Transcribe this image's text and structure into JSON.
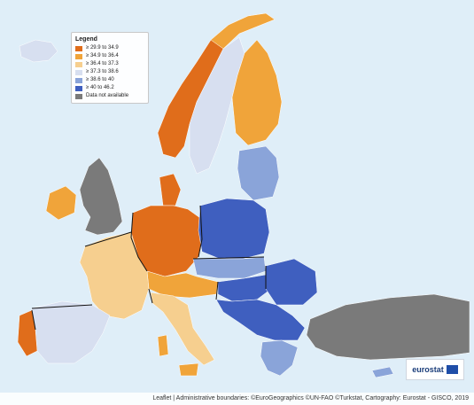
{
  "legend": {
    "title": "Legend",
    "items": [
      {
        "label": "≥ 29.9 to 34.9",
        "color": "#e06d1b"
      },
      {
        "label": "≥ 34.9 to 36.4",
        "color": "#f0a43a"
      },
      {
        "label": "≥ 36.4 to 37.3",
        "color": "#f6cf8f"
      },
      {
        "label": "≥ 37.3 to 38.6",
        "color": "#d7dff0"
      },
      {
        "label": "≥ 38.6 to 40",
        "color": "#8aa4d9"
      },
      {
        "label": "≥ 40 to 46.2",
        "color": "#3f5fbf"
      },
      {
        "label": "Data not available",
        "color": "#7a7a7a"
      }
    ]
  },
  "logo": {
    "text": "eurostat"
  },
  "attribution": "Leaflet | Administrative boundaries: ©EuroGeographics ©UN-FAO ©Turkstat, Cartography: Eurostat - GISCO, 2019",
  "colors": {
    "sea": "#dfeef8",
    "border": "#ffffff",
    "country_border": "#111111"
  }
}
